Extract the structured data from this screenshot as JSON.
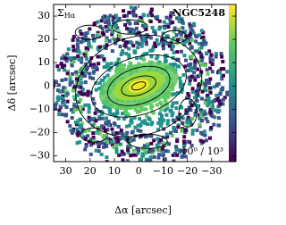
{
  "chart_data": {
    "type": "image",
    "title": {
      "symbol": "Σ",
      "subscript": "Hα"
    },
    "object": "NGC5248",
    "x_label": "Δα [arcsec]",
    "y_label": "Δδ [arcsec]",
    "xlim": [
      35,
      -40
    ],
    "ylim": [
      -32.5,
      35
    ],
    "xticks": [
      30,
      20,
      10,
      0,
      {
        "value": -10,
        "label": "−10"
      },
      {
        "value": -20,
        "label": "−20"
      },
      {
        "value": -30,
        "label": "−30"
      }
    ],
    "yticks": [
      {
        "value": -30,
        "label": "−30"
      },
      {
        "value": -20,
        "label": "−20"
      },
      {
        "value": -10,
        "label": "−10"
      },
      0,
      10,
      20,
      30
    ],
    "colorbar_range": "10⁰ / 10³",
    "colormap": [
      "#440154",
      "#3b528b",
      "#21918c",
      "#5ec962",
      "#fde725"
    ]
  }
}
